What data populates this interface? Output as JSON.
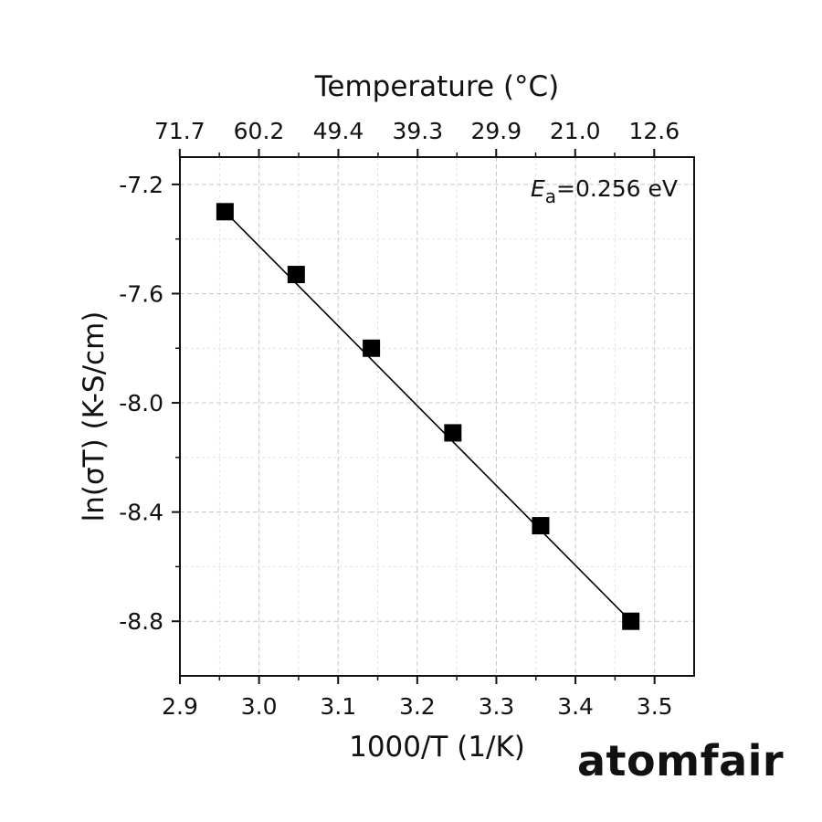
{
  "chart_data": {
    "type": "scatter",
    "xlabel": "1000/T (1/K)",
    "ylabel": "ln(σT) (K-S/cm)",
    "top_axis_label": "Temperature (°C)",
    "xlim": [
      2.9,
      3.55
    ],
    "ylim": [
      -9.0,
      -7.1
    ],
    "x_ticks": [
      "2.9",
      "3.0",
      "3.1",
      "3.2",
      "3.3",
      "3.4",
      "3.5"
    ],
    "y_ticks": [
      "-7.2",
      "-7.6",
      "-8.0",
      "-8.4",
      "-8.8"
    ],
    "top_ticks": [
      "71.7",
      "60.2",
      "49.4",
      "39.3",
      "29.9",
      "21.0",
      "12.6"
    ],
    "grid": true,
    "series": [
      {
        "x": [
          2.957,
          3.047,
          3.142,
          3.245,
          3.356,
          3.47
        ],
        "y": [
          -7.3,
          -7.53,
          -7.8,
          -8.11,
          -8.45,
          -8.8
        ],
        "marker": "square",
        "color": "#000000",
        "fit_line": true
      }
    ],
    "annotation": {
      "symbol": "E",
      "subscript": "a",
      "text": "=0.256 eV"
    }
  },
  "brand": "atomfair"
}
